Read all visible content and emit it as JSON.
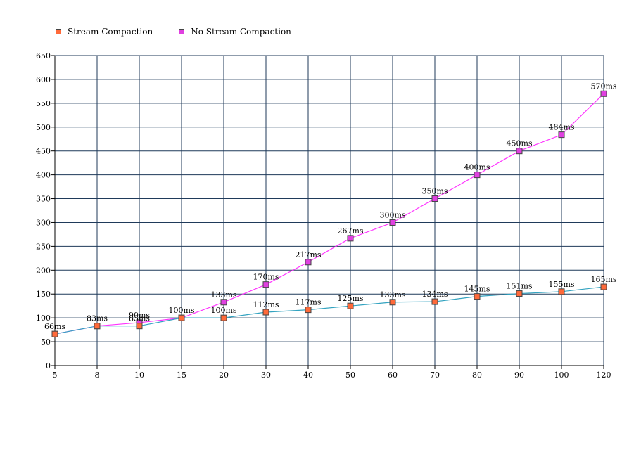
{
  "chart_data": {
    "type": "line",
    "categories": [
      "5",
      "8",
      "10",
      "15",
      "20",
      "30",
      "40",
      "50",
      "60",
      "70",
      "80",
      "90",
      "100",
      "120"
    ],
    "ylim": [
      0,
      650
    ],
    "yticks": [
      0,
      50,
      100,
      150,
      200,
      250,
      300,
      350,
      400,
      450,
      500,
      550,
      600,
      650
    ],
    "grid": true,
    "legend": "top-left",
    "series": [
      {
        "name": "Stream Compaction",
        "color": "#33a3c0",
        "marker_color": "#ff6a3a",
        "values": [
          66,
          83,
          83,
          100,
          100,
          112,
          117,
          125,
          133,
          134,
          145,
          151,
          155,
          165
        ],
        "labels": [
          "66ms",
          "83ms",
          "83ms",
          "100ms",
          "100ms",
          "112ms",
          "117ms",
          "125ms",
          "133ms",
          "134ms",
          "145ms",
          "151ms",
          "155ms",
          "165ms"
        ]
      },
      {
        "name": "No Stream Compaction",
        "color": "#ff33ff",
        "marker_color": "#e040e0",
        "values": [
          66,
          83,
          90,
          100,
          133,
          170,
          217,
          267,
          300,
          350,
          400,
          450,
          484,
          570
        ],
        "labels": [
          "",
          "",
          "90ms",
          "",
          "133ms",
          "170ms",
          "217ms",
          "267ms",
          "300ms",
          "350ms",
          "400ms",
          "450ms",
          "484ms",
          "570ms"
        ]
      }
    ]
  }
}
